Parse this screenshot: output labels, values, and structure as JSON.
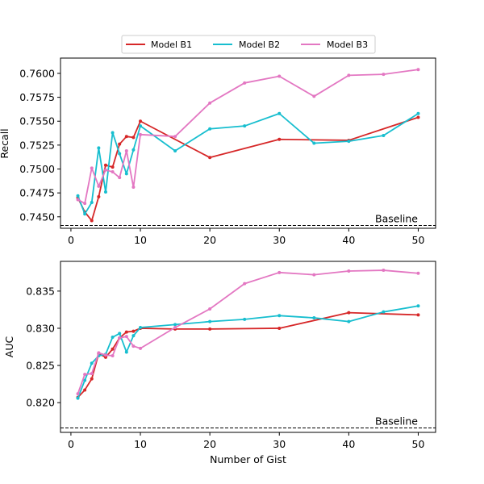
{
  "chart_data": {
    "type": "line",
    "legend": {
      "placement": "top-center",
      "entries": [
        "Model B1",
        "Model B2",
        "Model B3"
      ]
    },
    "colors": {
      "Model B1": "#d62728",
      "Model B2": "#17becf",
      "Model B3": "#e377c2",
      "baseline": "#000000"
    },
    "xlabel": "Number of Gist",
    "xlim": [
      -1.5,
      52.5
    ],
    "xticks": [
      0,
      10,
      20,
      30,
      40,
      50
    ],
    "panels": [
      {
        "ylabel": "Recall",
        "ylim": [
          0.7438,
          0.7616
        ],
        "yticks": [
          0.745,
          0.7475,
          0.75,
          0.7525,
          0.755,
          0.7575,
          0.76
        ],
        "ytick_labels": [
          "0.7450",
          "0.7475",
          "0.7500",
          "0.7525",
          "0.7550",
          "0.7575",
          "0.7600"
        ],
        "baseline": {
          "label": "Baseline",
          "value": 0.7441
        },
        "series": [
          {
            "name": "Model B1",
            "x": [
              1,
              2,
              3,
              4,
              5,
              6,
              7,
              8,
              9,
              10,
              20,
              30,
              40,
              50
            ],
            "y": [
              0.747,
              0.7455,
              0.7446,
              0.7471,
              0.7504,
              0.7502,
              0.7526,
              0.7534,
              0.7533,
              0.755,
              0.7512,
              0.7531,
              0.753,
              0.7554
            ]
          },
          {
            "name": "Model B2",
            "x": [
              1,
              2,
              3,
              4,
              5,
              6,
              7,
              8,
              9,
              10,
              15,
              20,
              25,
              30,
              35,
              40,
              45,
              50
            ],
            "y": [
              0.7472,
              0.7453,
              0.7465,
              0.7522,
              0.7476,
              0.7538,
              0.7516,
              0.7495,
              0.752,
              0.7545,
              0.7519,
              0.7542,
              0.7545,
              0.7558,
              0.7527,
              0.7529,
              0.7535,
              0.7558
            ]
          },
          {
            "name": "Model B3",
            "x": [
              1,
              2,
              3,
              4,
              5,
              6,
              7,
              8,
              9,
              10,
              15,
              20,
              25,
              30,
              35,
              40,
              45,
              50
            ],
            "y": [
              0.7468,
              0.7464,
              0.7501,
              0.7482,
              0.7499,
              0.7497,
              0.7491,
              0.7519,
              0.7481,
              0.7536,
              0.7534,
              0.7569,
              0.759,
              0.7597,
              0.7576,
              0.7598,
              0.7599,
              0.7604
            ]
          }
        ]
      },
      {
        "ylabel": "AUC",
        "ylim": [
          0.816,
          0.839
        ],
        "yticks": [
          0.82,
          0.825,
          0.83,
          0.835
        ],
        "ytick_labels": [
          "0.820",
          "0.825",
          "0.830",
          "0.835"
        ],
        "baseline": {
          "label": "Baseline",
          "value": 0.8166
        },
        "series": [
          {
            "name": "Model B1",
            "x": [
              1,
              2,
              3,
              4,
              5,
              6,
              7,
              8,
              9,
              10,
              15,
              20,
              30,
              40,
              50
            ],
            "y": [
              0.8207,
              0.8217,
              0.8232,
              0.8266,
              0.8261,
              0.8272,
              0.8287,
              0.8295,
              0.8296,
              0.83,
              0.8299,
              0.8299,
              0.83,
              0.8321,
              0.8318
            ]
          },
          {
            "name": "Model B2",
            "x": [
              1,
              2,
              3,
              4,
              5,
              6,
              7,
              8,
              9,
              10,
              15,
              20,
              25,
              30,
              35,
              40,
              45,
              50
            ],
            "y": [
              0.8206,
              0.823,
              0.8253,
              0.8263,
              0.8265,
              0.8288,
              0.8293,
              0.8268,
              0.829,
              0.8301,
              0.8305,
              0.8309,
              0.8312,
              0.8317,
              0.8314,
              0.8309,
              0.8322,
              0.833
            ]
          },
          {
            "name": "Model B3",
            "x": [
              1,
              2,
              3,
              4,
              5,
              6,
              7,
              8,
              9,
              10,
              15,
              20,
              25,
              30,
              35,
              40,
              45,
              50
            ],
            "y": [
              0.8212,
              0.8238,
              0.8239,
              0.8267,
              0.8264,
              0.8263,
              0.8287,
              0.8289,
              0.8276,
              0.8273,
              0.8301,
              0.8326,
              0.836,
              0.8375,
              0.8372,
              0.8377,
              0.8378,
              0.8374
            ]
          }
        ]
      }
    ]
  }
}
